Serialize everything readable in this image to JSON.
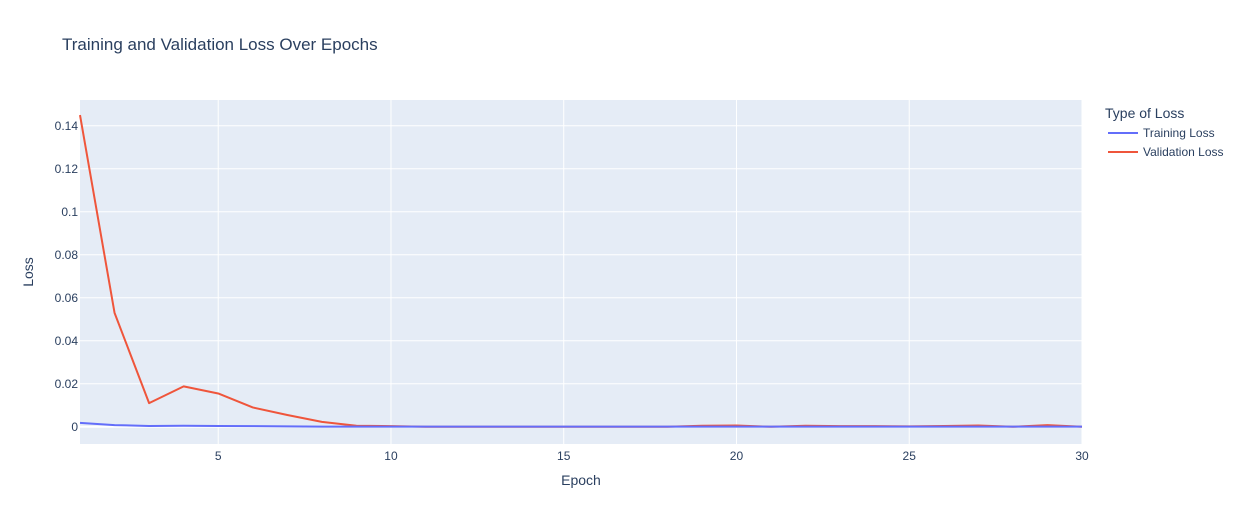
{
  "chart_data": {
    "type": "line",
    "title": "Training and Validation Loss Over Epochs",
    "xlabel": "Epoch",
    "ylabel": "Loss",
    "xlim": [
      1,
      30
    ],
    "ylim": [
      -0.008,
      0.152
    ],
    "xticks": [
      5,
      10,
      15,
      20,
      25,
      30
    ],
    "yticks": [
      0,
      0.02,
      0.04,
      0.06,
      0.08,
      0.1,
      0.12,
      0.14
    ],
    "grid": true,
    "legend": {
      "title": "Type of Loss",
      "position": "right"
    },
    "plot_bg": "#e5ecf6",
    "x": [
      1,
      2,
      3,
      4,
      5,
      6,
      7,
      8,
      9,
      10,
      11,
      12,
      13,
      14,
      15,
      16,
      17,
      18,
      19,
      20,
      21,
      22,
      23,
      24,
      25,
      26,
      27,
      28,
      29,
      30
    ],
    "series": [
      {
        "name": "Training Loss",
        "color": "#636efa",
        "values": [
          0.0018,
          0.0008,
          0.0004,
          0.0005,
          0.0004,
          0.0003,
          0.0002,
          0.0001,
          0.0001,
          0.0001,
          0.0001,
          0.0001,
          0.0001,
          0.0001,
          0.0001,
          0.0001,
          0.0001,
          0.0001,
          0.0001,
          0.0001,
          0.0001,
          0.0001,
          0.0001,
          0.0001,
          0.0001,
          0.0001,
          0.0001,
          0.0001,
          0.0001,
          0.0001
        ]
      },
      {
        "name": "Validation Loss",
        "color": "#ef553b",
        "values": [
          0.145,
          0.053,
          0.011,
          0.0188,
          0.0155,
          0.009,
          0.0055,
          0.0023,
          0.0005,
          0.0003,
          0.0,
          0.0,
          0.0,
          0.0,
          0.0,
          0.0,
          0.0,
          0.0,
          0.0005,
          0.0006,
          0.0,
          0.0005,
          0.0003,
          0.0003,
          0.0002,
          0.0004,
          0.0006,
          0.0,
          0.0008,
          0.0
        ]
      }
    ]
  }
}
